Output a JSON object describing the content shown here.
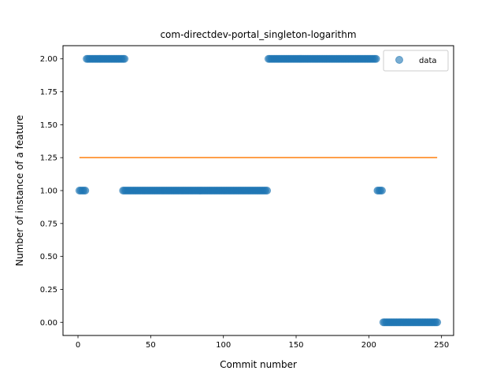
{
  "chart_data": {
    "type": "scatter",
    "title": "com-directdev-portal_singleton-logarithm",
    "xlabel": "Commit number",
    "ylabel": "Number of instance of a feature",
    "xlim": [
      -10.3,
      258.3
    ],
    "ylim": [
      -0.1,
      2.1
    ],
    "xticks": [
      0,
      50,
      100,
      150,
      200,
      250
    ],
    "yticks": [
      0.0,
      0.25,
      0.5,
      0.75,
      1.0,
      1.25,
      1.5,
      1.75,
      2.0
    ],
    "ytick_labels": [
      "0.00",
      "0.25",
      "0.50",
      "0.75",
      "1.00",
      "1.25",
      "1.50",
      "1.75",
      "2.00"
    ],
    "legend": {
      "position": "top-right",
      "entries": [
        "data"
      ]
    },
    "colors": {
      "data": "#1f77b4",
      "trend": "#ff7f0e"
    },
    "series": [
      {
        "name": "data",
        "kind": "scatter",
        "runs": [
          {
            "from": 1,
            "to": 5,
            "y": 1
          },
          {
            "from": 6,
            "to": 32,
            "y": 2
          },
          {
            "from": 31,
            "to": 130,
            "y": 1
          },
          {
            "from": 131,
            "to": 205,
            "y": 2
          },
          {
            "from": 206,
            "to": 209,
            "y": 1
          },
          {
            "from": 210,
            "to": 247,
            "y": 0
          }
        ]
      },
      {
        "kind": "line",
        "x": [
          1,
          247
        ],
        "y": [
          1.25,
          1.25
        ]
      }
    ]
  }
}
